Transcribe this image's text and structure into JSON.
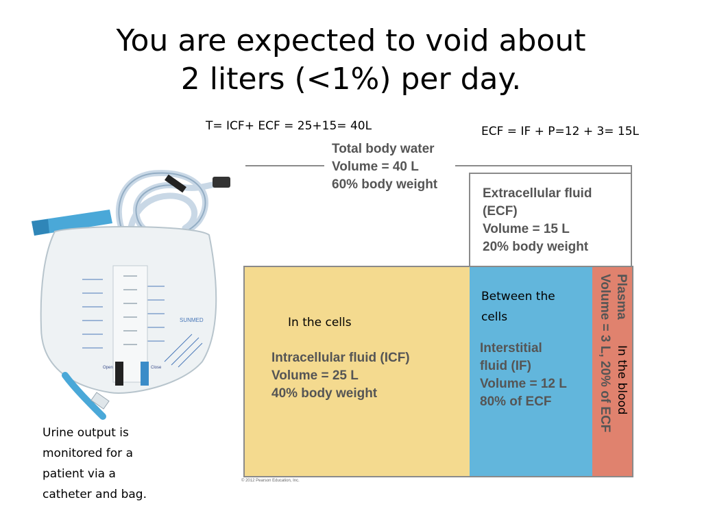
{
  "title": {
    "line1": "You are expected to void about",
    "line2": "2 liters (<1%) per day."
  },
  "notes": {
    "total_eq": "T= ICF+ ECF = 25+15= 40L",
    "ecf_eq": "ECF = IF + P=12 + 3= 15L",
    "in_cells": "In the cells",
    "between_line1": "Between the",
    "between_line2": "cells",
    "in_blood": "In the blood",
    "caption": [
      "Urine output is",
      "monitored for a",
      "patient via a",
      "catheter and bag."
    ]
  },
  "diagram": {
    "total": [
      "Total body water",
      "Volume = 40 L",
      "60% body weight"
    ],
    "ecf": [
      "Extracellular fluid",
      "(ECF)",
      "Volume = 15 L",
      "20% body weight"
    ],
    "icf": [
      "Intracellular fluid (ICF)",
      "Volume = 25 L",
      "40% body weight"
    ],
    "if": [
      "Interstitial",
      "fluid (IF)",
      "Volume = 12 L",
      "80% of ECF"
    ],
    "plasma": [
      "Plasma",
      "Volume = 3 L, 20% of ECF"
    ],
    "copyright": "© 2012 Pearson Education, Inc.",
    "colors": {
      "icf": "#f4da8f",
      "interstitial": "#62b6dc",
      "plasma": "#e0826e"
    }
  },
  "image": {
    "bag_text": "SUNMED",
    "bag_label_left": "Open",
    "bag_label_right": "Close"
  }
}
